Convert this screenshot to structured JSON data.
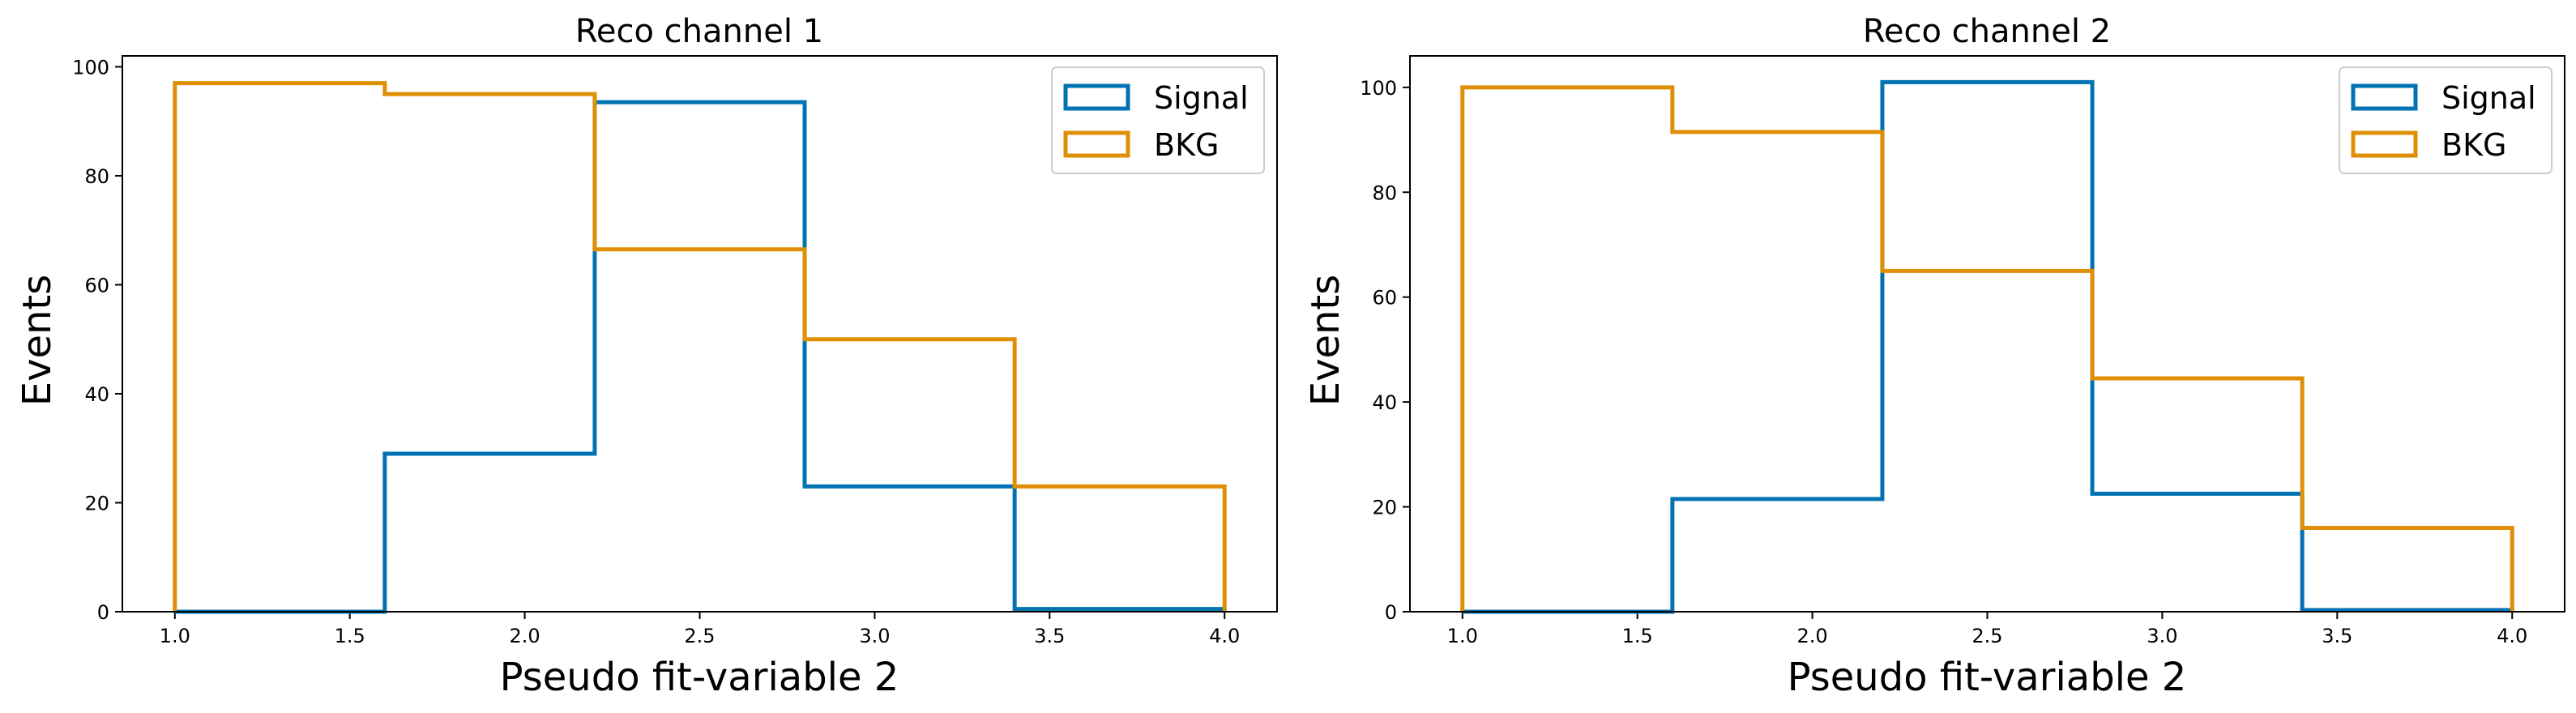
{
  "colors": {
    "signal": "#0173b2",
    "bkg": "#de8f05"
  },
  "chart_data": [
    {
      "type": "histogram-step",
      "title": "Reco channel 1",
      "xlabel": "Pseudo fit-variable 2",
      "ylabel": "Events",
      "xlim": [
        0.85,
        4.15
      ],
      "ylim": [
        0,
        102
      ],
      "xticks": [
        1.0,
        1.5,
        2.0,
        2.5,
        3.0,
        3.5,
        4.0
      ],
      "xtick_labels": [
        "1.0",
        "1.5",
        "2.0",
        "2.5",
        "3.0",
        "3.5",
        "4.0"
      ],
      "yticks": [
        0,
        20,
        40,
        60,
        80,
        100
      ],
      "ytick_labels": [
        "0",
        "20",
        "40",
        "60",
        "80",
        "100"
      ],
      "bin_edges": [
        1.0,
        1.6,
        2.2,
        2.8,
        3.4,
        4.0
      ],
      "legend_position": "top-right",
      "series": [
        {
          "name": "Signal",
          "color_key": "signal",
          "values": [
            0,
            29,
            93.5,
            23,
            0.5
          ]
        },
        {
          "name": "BKG",
          "color_key": "bkg",
          "values": [
            97,
            95,
            66.5,
            50,
            23
          ]
        }
      ]
    },
    {
      "type": "histogram-step",
      "title": "Reco channel 2",
      "xlabel": "Pseudo fit-variable 2",
      "ylabel": "Events",
      "xlim": [
        0.85,
        4.15
      ],
      "ylim": [
        0,
        106
      ],
      "xticks": [
        1.0,
        1.5,
        2.0,
        2.5,
        3.0,
        3.5,
        4.0
      ],
      "xtick_labels": [
        "1.0",
        "1.5",
        "2.0",
        "2.5",
        "3.0",
        "3.5",
        "4.0"
      ],
      "yticks": [
        0,
        20,
        40,
        60,
        80,
        100
      ],
      "ytick_labels": [
        "0",
        "20",
        "40",
        "60",
        "80",
        "100"
      ],
      "bin_edges": [
        1.0,
        1.6,
        2.2,
        2.8,
        3.4,
        4.0
      ],
      "legend_position": "top-right",
      "series": [
        {
          "name": "Signal",
          "color_key": "signal",
          "values": [
            0,
            21.5,
            101,
            22.5,
            0.3
          ]
        },
        {
          "name": "BKG",
          "color_key": "bkg",
          "values": [
            100,
            91.5,
            65,
            44.5,
            16
          ]
        }
      ]
    }
  ]
}
